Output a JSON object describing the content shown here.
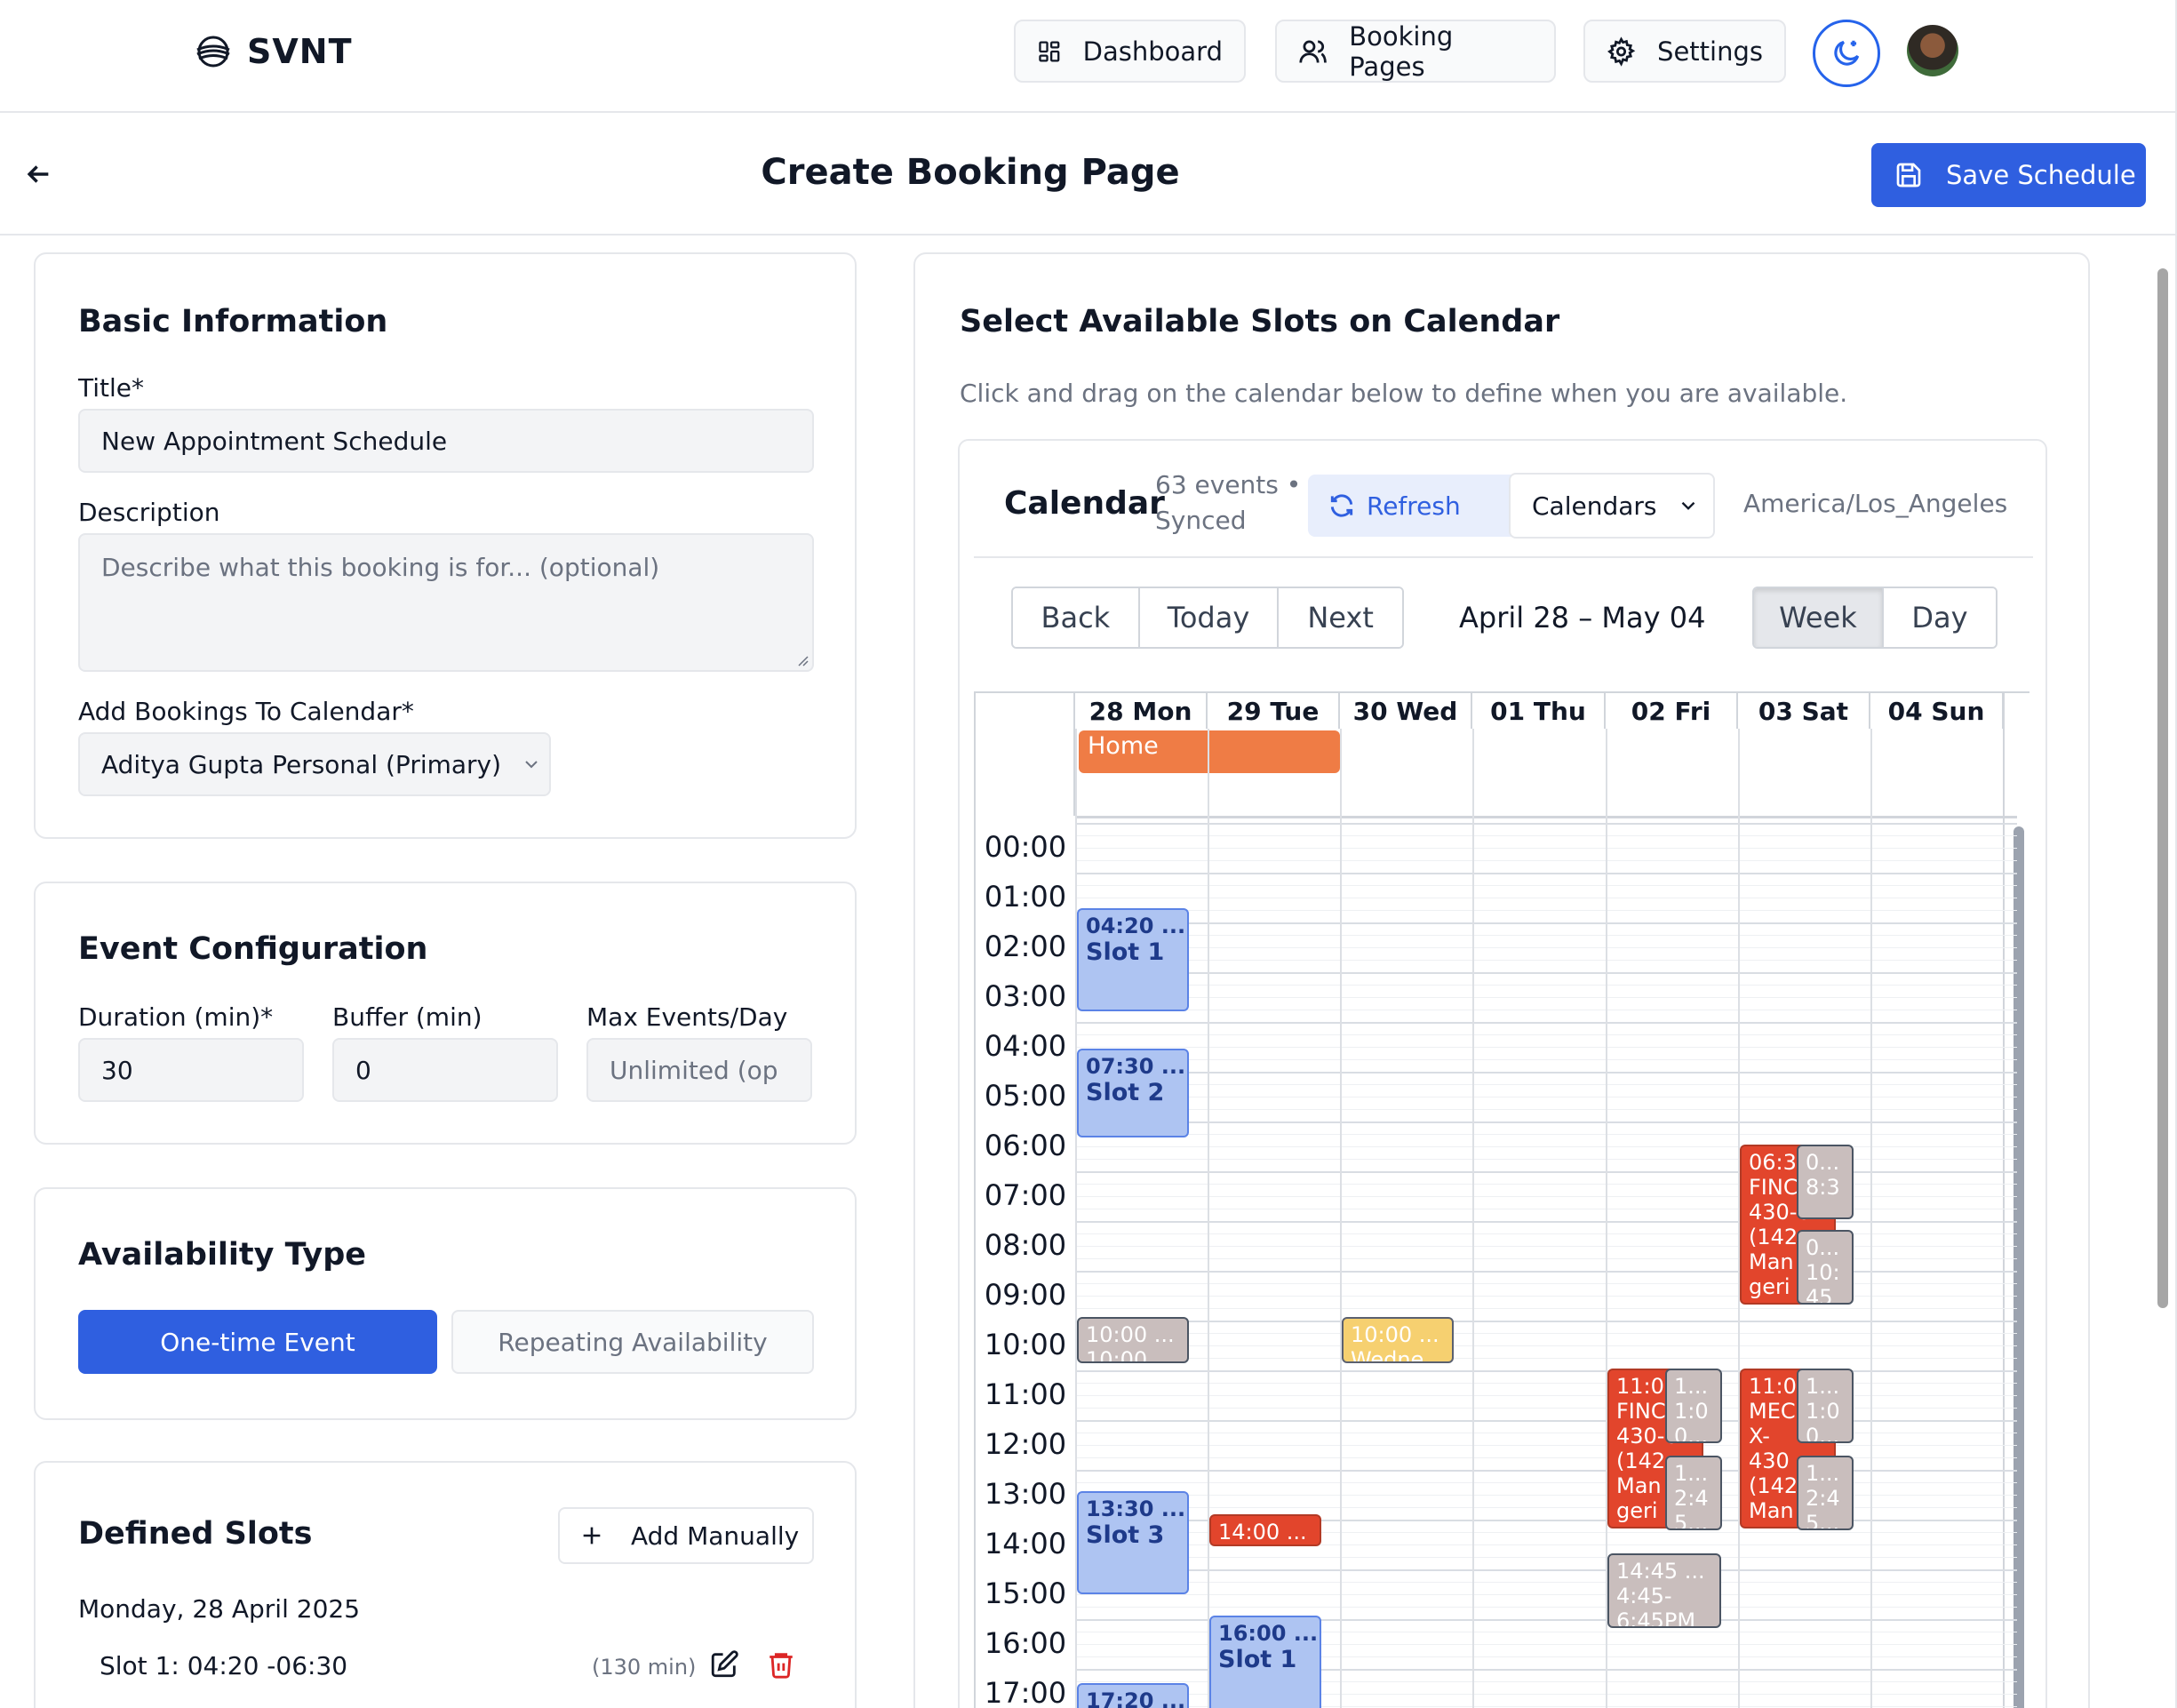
{
  "nav": {
    "brand": "SVNT",
    "dashboard": "Dashboard",
    "booking_pages": "Booking Pages",
    "settings": "Settings"
  },
  "header": {
    "title": "Create Booking Page",
    "save": "Save Schedule"
  },
  "basic": {
    "heading": "Basic Information",
    "title_label": "Title*",
    "title_value": "New Appointment Schedule",
    "desc_label": "Description",
    "desc_placeholder": "Describe what this booking is for... (optional)",
    "calendar_label": "Add Bookings To Calendar*",
    "calendar_value": "Aditya Gupta Personal (Primary)"
  },
  "event_config": {
    "heading": "Event Configuration",
    "duration_label": "Duration (min)*",
    "duration_value": "30",
    "buffer_label": "Buffer (min)",
    "buffer_value": "0",
    "max_label": "Max Events/Day",
    "max_placeholder": "Unlimited (op"
  },
  "availability": {
    "heading": "Availability Type",
    "one_time": "One-time Event",
    "repeating": "Repeating Availability"
  },
  "defined_slots": {
    "heading": "Defined Slots",
    "add_manually": "Add Manually",
    "date": "Monday, 28 April 2025",
    "slot1": "Slot 1: 04:20 -06:30",
    "slot1_dur": "(130 min)"
  },
  "calendar_panel": {
    "heading": "Select Available Slots on Calendar",
    "instructions": "Click and drag on the calendar below to define when you are available.",
    "cal_title": "Calendar",
    "events_line1": "63 events •",
    "events_line2": "Synced",
    "refresh": "Refresh",
    "calendars": "Calendars",
    "timezone": "America/Los_Angeles",
    "back": "Back",
    "today": "Today",
    "next": "Next",
    "range": "April 28 – May 04",
    "week": "Week",
    "day": "Day",
    "days": [
      "28 Mon",
      "29 Tue",
      "30 Wed",
      "01 Thu",
      "02 Fri",
      "03 Sat",
      "04 Sun"
    ],
    "hours": [
      "00:00",
      "01:00",
      "02:00",
      "03:00",
      "04:00",
      "05:00",
      "06:00",
      "07:00",
      "08:00",
      "09:00",
      "10:00",
      "11:00",
      "12:00",
      "13:00",
      "14:00",
      "15:00",
      "16:00",
      "17:00"
    ],
    "allday_event": "Home",
    "events": {
      "slot1_time": "04:20 ...",
      "slot1_name": "Slot 1",
      "slot2_time": "07:30 ...",
      "slot2_name": "Slot 2",
      "slot3_time": "13:30 ...",
      "slot3_name": "Slot 3",
      "tue_slot1_time": "16:00 ...",
      "tue_slot1_name": "Slot 1",
      "mon_1720": "17:20 ...",
      "mon_gray_1": "10:00 ...",
      "mon_gray_2": "10:00 ...",
      "wed_yellow_1": "10:00 ...",
      "wed_yellow_2": "Wedne...",
      "tue_red": "14:00 ...",
      "fri_red": [
        "11:00",
        "FINC",
        "430-0",
        "(142",
        "Man",
        "geri"
      ],
      "fri_gray_a": [
        "1...",
        "1:0",
        "0..."
      ],
      "fri_gray_b": [
        "1...",
        "2:4",
        "5..."
      ],
      "fri_gray_c": [
        "14:45 ...",
        "4:45-",
        "6:45PM"
      ],
      "sat_red_a": [
        "06:3",
        "FINC",
        "430-0",
        "(142",
        "Man",
        "geri"
      ],
      "sat_gray_a": [
        "0...",
        "8:3"
      ],
      "sat_gray_b": [
        "0...",
        "10:",
        "45"
      ],
      "sat_red_b": [
        "11:00",
        "MEC",
        "X-",
        "430",
        "(142",
        "Man"
      ],
      "sat_gray_c": [
        "1...",
        "1:0",
        "0..."
      ],
      "sat_gray_d": [
        "1...",
        "2:4",
        "5..."
      ]
    }
  },
  "colors": {
    "primary": "#2f5fe0",
    "slot_blue": "#aec4f2",
    "event_red": "#e2452c",
    "event_gray": "#c9bebd",
    "event_yellow": "#f6d070",
    "allday_orange": "#ef7c45"
  },
  "icons": [
    "logo-icon",
    "dashboard-icon",
    "users-icon",
    "gear-icon",
    "moon-icon",
    "back-arrow-icon",
    "save-icon",
    "chevron-down-icon",
    "refresh-icon",
    "plus-icon",
    "edit-icon",
    "trash-icon"
  ]
}
